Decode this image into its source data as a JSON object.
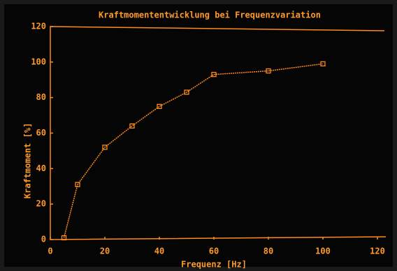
{
  "chart_data": {
    "type": "line",
    "title": "Kraftmomententwicklung bei Frequenzvariation",
    "x_label": "Frequenz [Hz]",
    "y_label": "Kraftmoment [%]",
    "x": [
      5,
      10,
      20,
      30,
      40,
      50,
      60,
      80,
      100
    ],
    "series": [
      {
        "color": "#ff8a1a",
        "values": [
          1,
          31,
          52,
          64,
          75,
          83,
          93,
          95,
          99
        ]
      }
    ],
    "xlim": [
      0,
      120
    ],
    "xticks": [
      0,
      20,
      40,
      60,
      80,
      100,
      120
    ],
    "ylim": [
      0,
      120
    ],
    "yticks": [
      0,
      20,
      40,
      60,
      80,
      100,
      120
    ],
    "grid": false
  }
}
